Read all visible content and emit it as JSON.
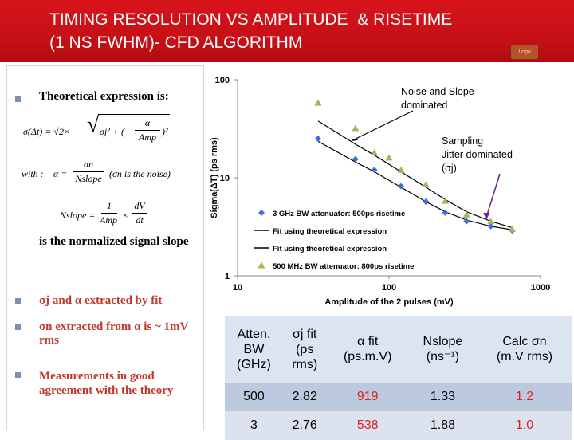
{
  "header": {
    "title_line1": "TIMING RESOLUTION VS AMPLITUDE  & RISETIME",
    "title_line2": "(1 NS FWHM)- CFD ALGORITHM"
  },
  "left": {
    "bullet1": "Theoretical expression is:",
    "with_label": "with :",
    "noise_note": "(σn is the noise)",
    "normalized_text": "is the normalized signal slope",
    "bullet2": "σj and α extracted by fit",
    "bullet3_line1": "σn extracted from α is ~ 1mV",
    "bullet3_line2": "rms",
    "bullet4_line1": "Measurements in good",
    "bullet4_line2": "agreement with the theory"
  },
  "colors": {
    "header": "#c40f16",
    "series_3ghz": "#3d6fd6",
    "series_500mhz": "#9bbb59",
    "bullet_red": "#c0392b",
    "table_header": "#dbe4f0"
  },
  "chart_data": {
    "type": "scatter",
    "x_scale": "log",
    "y_scale": "log",
    "xlim": [
      10,
      1000
    ],
    "ylim": [
      1,
      100
    ],
    "xlabel": "Amplitude of the 2 pulses (mV)",
    "ylabel": "Sigma(ΔT) (ps rms)",
    "x_ticks": [
      "10",
      "100",
      "1000"
    ],
    "y_ticks": [
      "1",
      "10",
      "100"
    ],
    "grid": false,
    "legend_position": "bottom-left inside",
    "series": [
      {
        "name": "3 GHz BW attenuator: 500ps risetime",
        "marker": "diamond",
        "color": "#3d6fd6",
        "points": [
          [
            34,
            25
          ],
          [
            60,
            15.5
          ],
          [
            80,
            12
          ],
          [
            120,
            8.2
          ],
          [
            175,
            5.7
          ],
          [
            235,
            4.4
          ],
          [
            325,
            3.6
          ],
          [
            470,
            3.2
          ],
          [
            650,
            2.9
          ]
        ]
      },
      {
        "name": "Fit using theoretical expression",
        "type": "line",
        "color": "#000000",
        "points": [
          [
            34,
            23.5
          ],
          [
            60,
            14.5
          ],
          [
            80,
            11.5
          ],
          [
            120,
            8.0
          ],
          [
            175,
            5.7
          ],
          [
            235,
            4.5
          ],
          [
            325,
            3.7
          ],
          [
            470,
            3.2
          ],
          [
            650,
            2.95
          ]
        ]
      },
      {
        "name": "Fit using theoretical expression",
        "type": "line",
        "color": "#000000",
        "points": [
          [
            34,
            38
          ],
          [
            60,
            22
          ],
          [
            80,
            17
          ],
          [
            120,
            11.5
          ],
          [
            175,
            8.0
          ],
          [
            235,
            6.0
          ],
          [
            325,
            4.5
          ],
          [
            470,
            3.6
          ],
          [
            650,
            3.1
          ]
        ]
      },
      {
        "name": "500 MHz BW attenuator: 800ps risetime",
        "marker": "triangle",
        "color": "#9bbb59",
        "points": [
          [
            34,
            58
          ],
          [
            60,
            32
          ],
          [
            80,
            18
          ],
          [
            100,
            16
          ],
          [
            120,
            12
          ],
          [
            175,
            8.5
          ],
          [
            235,
            5.8
          ],
          [
            325,
            4.2
          ],
          [
            470,
            3.6
          ],
          [
            650,
            3.0
          ]
        ]
      }
    ],
    "annotations": [
      {
        "text_lines": [
          "Noise and Slope",
          "dominated"
        ],
        "arrow_to": [
          57,
          24
        ]
      },
      {
        "text_lines": [
          "Sampling",
          "Jitter dominated",
          "(σj)"
        ],
        "arrow_to": [
          440,
          4.0
        ]
      }
    ]
  },
  "table": {
    "headers": [
      [
        "Atten.",
        "BW",
        "(GHz)"
      ],
      [
        "σj fit",
        "(ps",
        "rms)"
      ],
      [
        "α  fit",
        "(ps.m.V)"
      ],
      [
        "Nslope",
        "(ns⁻¹)"
      ],
      [
        "Calc σn",
        "(m.V rms)"
      ]
    ],
    "rows": [
      [
        "500",
        "2.82",
        "919",
        "1.33",
        "1.2"
      ],
      [
        "3",
        "2.76",
        "538",
        "1.88",
        "1.0"
      ]
    ]
  }
}
